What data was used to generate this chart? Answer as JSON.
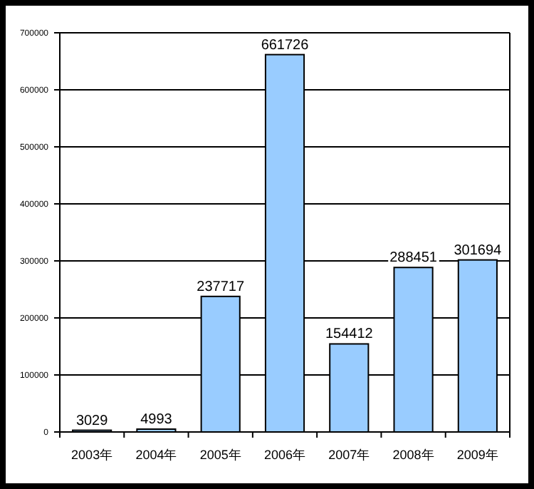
{
  "chart_data": {
    "type": "bar",
    "categories": [
      "2003年",
      "2004年",
      "2005年",
      "2006年",
      "2007年",
      "2008年",
      "2009年"
    ],
    "values": [
      3029,
      4993,
      237717,
      661726,
      154412,
      288451,
      301694
    ],
    "color": "#99ccff",
    "ylim": [
      0,
      700000
    ],
    "yticks": [
      0,
      100000,
      200000,
      300000,
      400000,
      500000,
      600000,
      700000
    ],
    "grid": "y",
    "data_labels": true
  }
}
